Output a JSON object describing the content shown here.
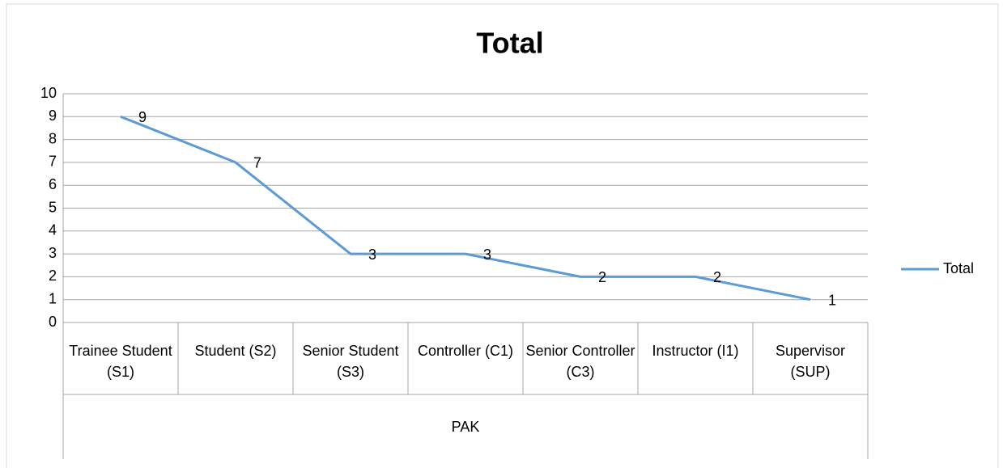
{
  "chart_data": {
    "type": "line",
    "title": "Total",
    "categories": [
      "Trainee Student (S1)",
      "Student (S2)",
      "Senior Student (S3)",
      "Controller (C1)",
      "Senior Controller (C3)",
      "Instructor (I1)",
      "Supervisor (SUP)"
    ],
    "x_group_label": "PAK",
    "series": [
      {
        "name": "Total",
        "color": "#5b9bd5",
        "values": [
          9,
          7,
          3,
          3,
          2,
          2,
          1
        ]
      }
    ],
    "ylim": [
      0,
      10
    ],
    "yticks": [
      0,
      1,
      2,
      3,
      4,
      5,
      6,
      7,
      8,
      9,
      10
    ],
    "grid": true,
    "data_labels": true,
    "legend": "right"
  }
}
